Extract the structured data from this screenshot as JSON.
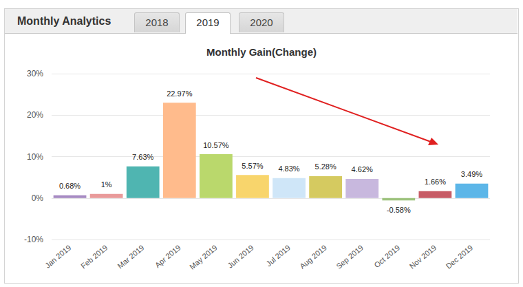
{
  "page": {
    "heading": "Monthly Analytics",
    "tabs": [
      "2018",
      "2019",
      "2020"
    ],
    "active_tab": "2019"
  },
  "chart_data": {
    "type": "bar",
    "title": "Monthly Gain(Change)",
    "categories": [
      "Jan 2019",
      "Feb 2019",
      "Mar 2019",
      "Apr 2019",
      "May 2019",
      "Jun 2019",
      "Jul 2019",
      "Aug 2019",
      "Sep 2019",
      "Oct 2019",
      "Nov 2019",
      "Dec 2019"
    ],
    "values": [
      0.68,
      1,
      7.63,
      22.97,
      10.57,
      5.57,
      4.83,
      5.28,
      4.62,
      -0.58,
      1.66,
      3.49
    ],
    "value_labels": [
      "0.68%",
      "1%",
      "7.63%",
      "22.97%",
      "10.57%",
      "5.57%",
      "4.83%",
      "5.28%",
      "4.62%",
      "-0.58%",
      "1.66%",
      "3.49%"
    ],
    "colors": [
      "#a68ac2",
      "#e99a9a",
      "#4fb5b1",
      "#ffbb8c",
      "#bad86c",
      "#f8d56c",
      "#cfe6f8",
      "#d5ca60",
      "#c8b8de",
      "#9cc27c",
      "#c75c66",
      "#5cb6e8"
    ],
    "ylim": [
      -10,
      30
    ],
    "yticks": [
      {
        "value": -10,
        "label": "-10%"
      },
      {
        "value": 0,
        "label": "0%"
      },
      {
        "value": 10,
        "label": "10%"
      },
      {
        "value": 20,
        "label": "20%"
      },
      {
        "value": 30,
        "label": "30%"
      }
    ],
    "grid": true,
    "data_labels": true
  }
}
